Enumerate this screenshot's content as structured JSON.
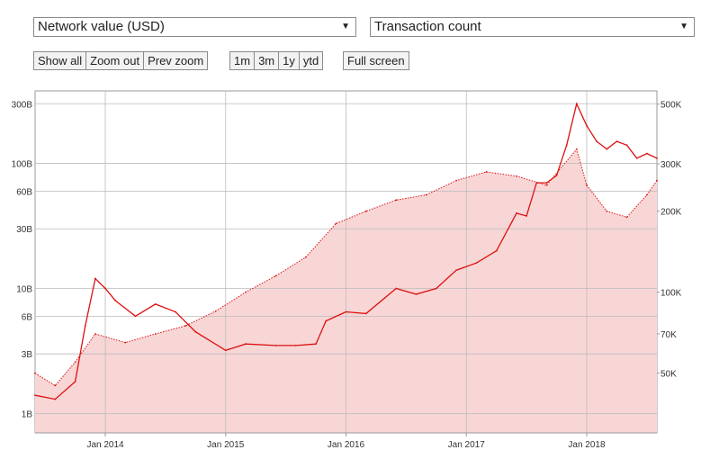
{
  "selectors": {
    "left": {
      "value": "Network value (USD)"
    },
    "right": {
      "value": "Transaction count"
    }
  },
  "buttons": {
    "zoom": [
      "Show all",
      "Zoom out",
      "Prev zoom"
    ],
    "ranges": [
      "1m",
      "3m",
      "1y",
      "ytd"
    ],
    "fullscreen": "Full screen"
  },
  "colors": {
    "line": "#dd1111",
    "fill": "#f8d6d6",
    "grid": "#bbbbbb"
  },
  "chart_data": {
    "type": "line",
    "title": "",
    "x_ticks": [
      "Jan 2014",
      "Jan 2015",
      "Jan 2016",
      "Jan 2017",
      "Jan 2018"
    ],
    "x_range": [
      "2013-06",
      "2018-08"
    ],
    "left_axis": {
      "label": "Network value (USD)",
      "scale": "log",
      "ticks": [
        "1B",
        "3B",
        "6B",
        "10B",
        "30B",
        "60B",
        "100B",
        "300B"
      ],
      "range": [
        700000000,
        380000000000
      ]
    },
    "right_axis": {
      "label": "Transaction count",
      "scale": "log",
      "ticks": [
        "50K",
        "70K",
        "100K",
        "200K",
        "300K",
        "500K"
      ],
      "range": [
        30000,
        560000
      ]
    },
    "grid": true,
    "series": [
      {
        "name": "Network value (USD)",
        "style": "solid",
        "points": [
          [
            "2013-06",
            1400000000.0
          ],
          [
            "2013-08",
            1300000000.0
          ],
          [
            "2013-10",
            1800000000.0
          ],
          [
            "2013-11",
            5000000000.0
          ],
          [
            "2013-12",
            12000000000.0
          ],
          [
            "2014-01",
            10000000000.0
          ],
          [
            "2014-02",
            8000000000.0
          ],
          [
            "2014-04",
            6000000000.0
          ],
          [
            "2014-06",
            7500000000.0
          ],
          [
            "2014-08",
            6500000000.0
          ],
          [
            "2014-10",
            4500000000.0
          ],
          [
            "2015-01",
            3200000000.0
          ],
          [
            "2015-03",
            3600000000.0
          ],
          [
            "2015-06",
            3500000000.0
          ],
          [
            "2015-08",
            3500000000.0
          ],
          [
            "2015-10",
            3600000000.0
          ],
          [
            "2015-11",
            5500000000.0
          ],
          [
            "2016-01",
            6500000000.0
          ],
          [
            "2016-03",
            6300000000.0
          ],
          [
            "2016-06",
            10000000000.0
          ],
          [
            "2016-08",
            9000000000.0
          ],
          [
            "2016-10",
            10000000000.0
          ],
          [
            "2016-12",
            14000000000.0
          ],
          [
            "2017-02",
            16000000000.0
          ],
          [
            "2017-04",
            20000000000.0
          ],
          [
            "2017-06",
            40000000000.0
          ],
          [
            "2017-07",
            38000000000.0
          ],
          [
            "2017-08",
            70000000000.0
          ],
          [
            "2017-09",
            70000000000.0
          ],
          [
            "2017-10",
            80000000000.0
          ],
          [
            "2017-11",
            140000000000.0
          ],
          [
            "2017-12",
            300000000000.0
          ],
          [
            "2018-01",
            200000000000.0
          ],
          [
            "2018-02",
            150000000000.0
          ],
          [
            "2018-03",
            130000000000.0
          ],
          [
            "2018-04",
            150000000000.0
          ],
          [
            "2018-05",
            140000000000.0
          ],
          [
            "2018-06",
            110000000000.0
          ],
          [
            "2018-07",
            120000000000.0
          ],
          [
            "2018-08",
            110000000000.0
          ]
        ]
      },
      {
        "name": "Transaction count",
        "style": "dotted",
        "points": [
          [
            "2013-06",
            50000
          ],
          [
            "2013-08",
            45000
          ],
          [
            "2013-10",
            55000
          ],
          [
            "2013-12",
            70000
          ],
          [
            "2014-03",
            65000
          ],
          [
            "2014-06",
            70000
          ],
          [
            "2014-09",
            75000
          ],
          [
            "2014-12",
            85000
          ],
          [
            "2015-03",
            100000
          ],
          [
            "2015-06",
            115000
          ],
          [
            "2015-09",
            135000
          ],
          [
            "2015-12",
            180000
          ],
          [
            "2016-03",
            200000
          ],
          [
            "2016-06",
            220000
          ],
          [
            "2016-09",
            230000
          ],
          [
            "2016-12",
            260000
          ],
          [
            "2017-03",
            280000
          ],
          [
            "2017-06",
            270000
          ],
          [
            "2017-09",
            250000
          ],
          [
            "2017-12",
            340000
          ],
          [
            "2018-01",
            250000
          ],
          [
            "2018-03",
            200000
          ],
          [
            "2018-05",
            190000
          ],
          [
            "2018-07",
            230000
          ],
          [
            "2018-08",
            260000
          ]
        ]
      }
    ]
  }
}
